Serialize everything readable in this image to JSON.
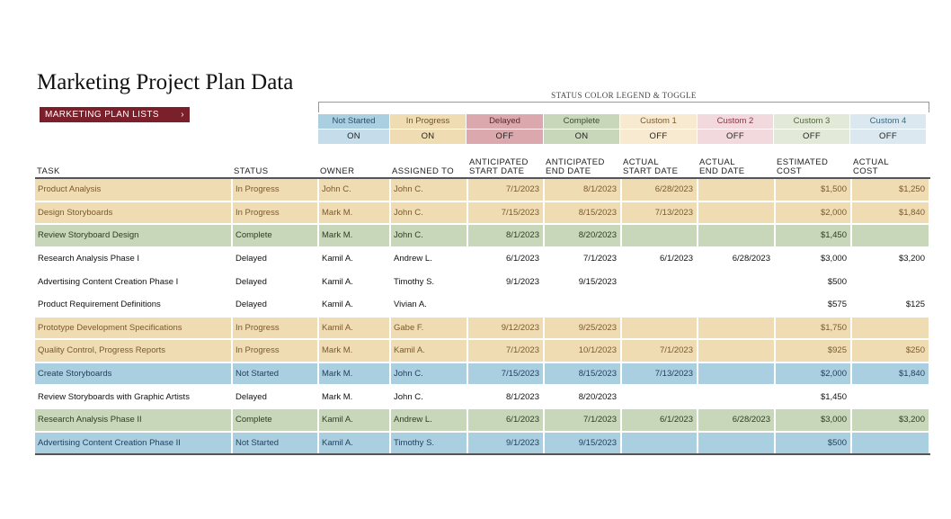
{
  "title": "Marketing Project Plan Data",
  "lists_button": {
    "label": "MARKETING PLAN LISTS",
    "icon": "chevron-right-icon"
  },
  "legend": {
    "title": "STATUS COLOR LEGEND & TOGGLE",
    "items": [
      {
        "name": "Not Started",
        "toggle": "ON",
        "color": "#a9cfe0",
        "text_color": "#2b4f6b",
        "toggle_color": "#c5dcea"
      },
      {
        "name": "In Progress",
        "toggle": "ON",
        "color": "#f0dcb3",
        "text_color": "#6b5230",
        "toggle_color": "#f0dcb3"
      },
      {
        "name": "Delayed",
        "toggle": "OFF",
        "color": "#dba8ae",
        "text_color": "#5a2a30",
        "toggle_color": "#dba8ae"
      },
      {
        "name": "Complete",
        "toggle": "ON",
        "color": "#c8d6b9",
        "text_color": "#3c4d2d",
        "toggle_color": "#c8d6b9"
      },
      {
        "name": "Custom 1",
        "toggle": "OFF",
        "color": "#f7ead1",
        "text_color": "#7a5a2c",
        "toggle_color": "#f7ead1"
      },
      {
        "name": "Custom 2",
        "toggle": "OFF",
        "color": "#f2d9dd",
        "text_color": "#8a3340",
        "toggle_color": "#f2d9dd"
      },
      {
        "name": "Custom 3",
        "toggle": "OFF",
        "color": "#e3e9d9",
        "text_color": "#556640",
        "toggle_color": "#e3e9d9"
      },
      {
        "name": "Custom 4",
        "toggle": "OFF",
        "color": "#dbe8f0",
        "text_color": "#3b6680",
        "toggle_color": "#dbe8f0"
      }
    ]
  },
  "table": {
    "columns": [
      {
        "line1": "",
        "line2": "TASK"
      },
      {
        "line1": "",
        "line2": "STATUS"
      },
      {
        "line1": "",
        "line2": "OWNER"
      },
      {
        "line1": "",
        "line2": "ASSIGNED TO"
      },
      {
        "line1": "ANTICIPATED",
        "line2": "START DATE"
      },
      {
        "line1": "ANTICIPATED",
        "line2": "END DATE"
      },
      {
        "line1": "ACTUAL",
        "line2": "START DATE"
      },
      {
        "line1": "ACTUAL",
        "line2": "END DATE"
      },
      {
        "line1": "ESTIMATED",
        "line2": "COST"
      },
      {
        "line1": "ACTUAL",
        "line2": "COST"
      }
    ],
    "rows": [
      {
        "task": "Product Analysis",
        "status": "In Progress",
        "owner": "John C.",
        "assigned": "John C.",
        "ant_start": "7/1/2023",
        "ant_end": "8/1/2023",
        "act_start": "6/28/2023",
        "act_end": "",
        "est_cost": "$1,500",
        "act_cost": "$1,250",
        "fill": "#f0dcb3",
        "text": "#7a5a2c"
      },
      {
        "task": "Design Storyboards",
        "status": "In Progress",
        "owner": "Mark M.",
        "assigned": "John C.",
        "ant_start": "7/15/2023",
        "ant_end": "8/15/2023",
        "act_start": "7/13/2023",
        "act_end": "",
        "est_cost": "$2,000",
        "act_cost": "$1,840",
        "fill": "#f0dcb3",
        "text": "#7a5a2c"
      },
      {
        "task": "Review Storyboard Design",
        "status": "Complete",
        "owner": "Mark M.",
        "assigned": "John C.",
        "ant_start": "8/1/2023",
        "ant_end": "8/20/2023",
        "act_start": "",
        "act_end": "",
        "est_cost": "$1,450",
        "act_cost": "",
        "fill": "#c8d6b9",
        "text": "#2f3d24"
      },
      {
        "task": "Research Analysis Phase I",
        "status": "Delayed",
        "owner": "Kamil A.",
        "assigned": "Andrew L.",
        "ant_start": "6/1/2023",
        "ant_end": "7/1/2023",
        "act_start": "6/1/2023",
        "act_end": "6/28/2023",
        "est_cost": "$3,000",
        "act_cost": "$3,200",
        "fill": "#ffffff",
        "text": "#111111"
      },
      {
        "task": "Advertising Content Creation Phase I",
        "status": "Delayed",
        "owner": "Kamil A.",
        "assigned": "Timothy S.",
        "ant_start": "9/1/2023",
        "ant_end": "9/15/2023",
        "act_start": "",
        "act_end": "",
        "est_cost": "$500",
        "act_cost": "",
        "fill": "#ffffff",
        "text": "#111111"
      },
      {
        "task": "Product Requirement Definitions",
        "status": "Delayed",
        "owner": "Kamil A.",
        "assigned": "Vivian A.",
        "ant_start": "",
        "ant_end": "",
        "act_start": "",
        "act_end": "",
        "est_cost": "$575",
        "act_cost": "$125",
        "fill": "#ffffff",
        "text": "#111111"
      },
      {
        "task": "Prototype Development Specifications",
        "status": "In Progress",
        "owner": "Kamil A.",
        "assigned": "Gabe F.",
        "ant_start": "9/12/2023",
        "ant_end": "9/25/2023",
        "act_start": "",
        "act_end": "",
        "est_cost": "$1,750",
        "act_cost": "",
        "fill": "#f0dcb3",
        "text": "#7a5a2c"
      },
      {
        "task": "Quality Control, Progress Reports",
        "status": "In Progress",
        "owner": "Mark M.",
        "assigned": "Kamil A.",
        "ant_start": "7/1/2023",
        "ant_end": "10/1/2023",
        "act_start": "7/1/2023",
        "act_end": "",
        "est_cost": "$925",
        "act_cost": "$250",
        "fill": "#f0dcb3",
        "text": "#7a5a2c"
      },
      {
        "task": "Create Storyboards",
        "status": "Not Started",
        "owner": "Mark M.",
        "assigned": "John C.",
        "ant_start": "7/15/2023",
        "ant_end": "8/15/2023",
        "act_start": "7/13/2023",
        "act_end": "",
        "est_cost": "$2,000",
        "act_cost": "$1,840",
        "fill": "#aacfe0",
        "text": "#1f3f5a"
      },
      {
        "task": "Review Storyboards with Graphic Artists",
        "status": "Delayed",
        "owner": "Mark M.",
        "assigned": "John C.",
        "ant_start": "8/1/2023",
        "ant_end": "8/20/2023",
        "act_start": "",
        "act_end": "",
        "est_cost": "$1,450",
        "act_cost": "",
        "fill": "#ffffff",
        "text": "#111111"
      },
      {
        "task": "Research Analysis Phase II",
        "status": "Complete",
        "owner": "Kamil A.",
        "assigned": "Andrew L.",
        "ant_start": "6/1/2023",
        "ant_end": "7/1/2023",
        "act_start": "6/1/2023",
        "act_end": "6/28/2023",
        "est_cost": "$3,000",
        "act_cost": "$3,200",
        "fill": "#c8d6b9",
        "text": "#2f3d24"
      },
      {
        "task": "Advertising Content Creation Phase II",
        "status": "Not Started",
        "owner": "Kamil A.",
        "assigned": "Timothy S.",
        "ant_start": "9/1/2023",
        "ant_end": "9/15/2023",
        "act_start": "",
        "act_end": "",
        "est_cost": "$500",
        "act_cost": "",
        "fill": "#aacfe0",
        "text": "#1f3f5a"
      }
    ]
  }
}
